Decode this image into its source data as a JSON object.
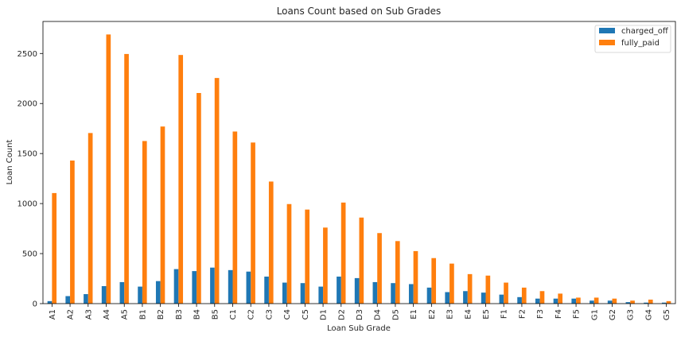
{
  "chart_data": {
    "type": "bar",
    "title": "Loans Count based on Sub Grades",
    "xlabel": "Loan Sub Grade",
    "ylabel": "Loan Count",
    "ylim": [
      0,
      2820
    ],
    "yticks": [
      0,
      500,
      1000,
      1500,
      2000,
      2500
    ],
    "grid": false,
    "legend_position": "top-right",
    "categories": [
      "A1",
      "A2",
      "A3",
      "A4",
      "A5",
      "B1",
      "B2",
      "B3",
      "B4",
      "B5",
      "C1",
      "C2",
      "C3",
      "C4",
      "C5",
      "D1",
      "D2",
      "D3",
      "D4",
      "D5",
      "E1",
      "E2",
      "E3",
      "E4",
      "E5",
      "F1",
      "F2",
      "F3",
      "F4",
      "F5",
      "G1",
      "G2",
      "G3",
      "G4",
      "G5"
    ],
    "series": [
      {
        "name": "charged_off",
        "color": "#1f77b4",
        "values": [
          25,
          75,
          95,
          175,
          215,
          170,
          225,
          345,
          325,
          360,
          335,
          320,
          270,
          210,
          205,
          170,
          270,
          255,
          215,
          205,
          195,
          160,
          115,
          125,
          110,
          90,
          65,
          50,
          50,
          50,
          30,
          30,
          15,
          10,
          10
        ]
      },
      {
        "name": "fully_paid",
        "color": "#ff7f0e",
        "values": [
          1105,
          1430,
          1705,
          2690,
          2495,
          1625,
          1770,
          2485,
          2105,
          2255,
          1720,
          1610,
          1220,
          995,
          940,
          760,
          1010,
          860,
          705,
          625,
          525,
          455,
          400,
          295,
          280,
          210,
          160,
          125,
          100,
          60,
          60,
          50,
          30,
          40,
          25
        ]
      }
    ]
  }
}
